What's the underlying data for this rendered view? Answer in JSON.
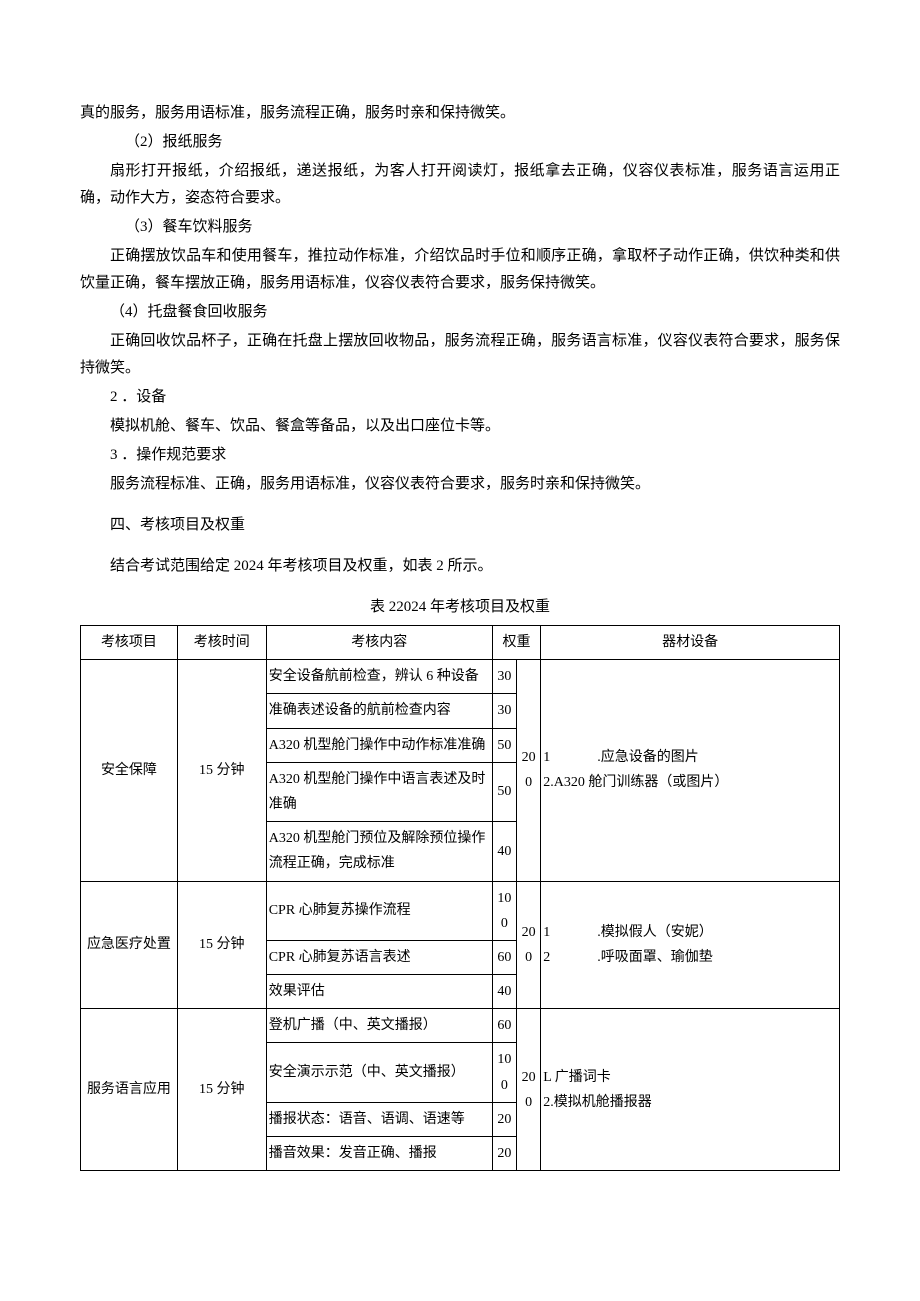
{
  "paragraphs": {
    "p1": "真的服务，服务用语标准，服务流程正确，服务时亲和保持微笑。",
    "p2": "（2）报纸服务",
    "p3": "扇形打开报纸，介绍报纸，递送报纸，为客人打开阅读灯，报纸拿去正确，仪容仪表标准，服务语言运用正确，动作大方，姿态符合要求。",
    "p4": "（3）餐车饮料服务",
    "p5": "正确摆放饮品车和使用餐车，推拉动作标准，介绍饮品时手位和顺序正确，拿取杯子动作正确，供饮种类和供饮量正确，餐车摆放正确，服务用语标准，仪容仪表符合要求，服务保持微笑。",
    "p6": "（4）托盘餐食回收服务",
    "p7": "正确回收饮品杯子，正确在托盘上摆放回收物品，服务流程正确，服务语言标准，仪容仪表符合要求，服务保持微笑。",
    "p8": "2 ．设备",
    "p9": "模拟机舱、餐车、饮品、餐盒等备品，以及出口座位卡等。",
    "p10": "3 ．操作规范要求",
    "p11": "服务流程标准、正确，服务用语标准，仪容仪表符合要求，服务时亲和保持微笑。",
    "sec4": "四、考核项目及权重",
    "p12": "结合考试范围给定 2024 年考核项目及权重，如表 2 所示。",
    "caption": "表 22024 年考核项目及权重"
  },
  "table": {
    "headers": [
      "考核项目",
      "考核时间",
      "考核内容",
      "权重",
      "器材设备"
    ],
    "groups": [
      {
        "project": "安全保障",
        "time": "15 分钟",
        "total_weight": "200",
        "equipment_lines": [
          {
            "num": "1",
            "text": ".应急设备的图片"
          },
          {
            "num": "",
            "text": "2.A320 舱门训练器（或图片）"
          }
        ],
        "rows": [
          {
            "content": "安全设备航前检查，辨认 6 种设备",
            "weight": "30"
          },
          {
            "content": "准确表述设备的航前检查内容",
            "weight": "30"
          },
          {
            "content": "A320 机型舱门操作中动作标准准确",
            "weight": "50"
          },
          {
            "content": "A320 机型舱门操作中语言表述及时准确",
            "weight": "50"
          },
          {
            "content": "A320 机型舱门预位及解除预位操作流程正确，完成标准",
            "weight": "40"
          }
        ]
      },
      {
        "project": "应急医疗处置",
        "time": "15 分钟",
        "total_weight": "200",
        "equipment_lines": [
          {
            "num": "1",
            "text": ".模拟假人（安妮）"
          },
          {
            "num": "2",
            "text": ".呼吸面罩、瑜伽垫"
          }
        ],
        "rows": [
          {
            "content": "CPR 心肺复苏操作流程",
            "weight": "100"
          },
          {
            "content": "CPR 心肺复苏语言表述",
            "weight": "60"
          },
          {
            "content": "效果评估",
            "weight": "40"
          }
        ]
      },
      {
        "project": "服务语言应用",
        "time": "15 分钟",
        "total_weight": "200",
        "equipment_lines": [
          {
            "num": "",
            "text": "L 广播词卡"
          },
          {
            "num": "",
            "text": "2.模拟机舱播报器"
          }
        ],
        "rows": [
          {
            "content": "登机广播（中、英文播报）",
            "weight": "60"
          },
          {
            "content": "安全演示示范（中、英文播报）",
            "weight": "100"
          },
          {
            "content": "播报状态：语音、语调、语速等",
            "weight": "20"
          },
          {
            "content": "播音效果：发音正确、播报",
            "weight": "20"
          }
        ]
      }
    ]
  }
}
